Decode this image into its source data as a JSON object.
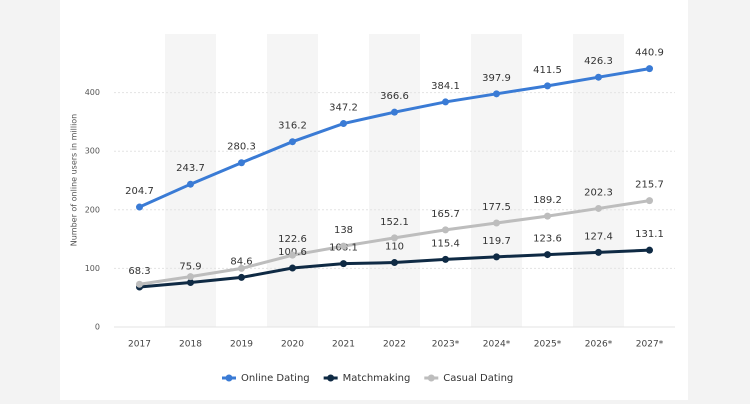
{
  "chart_data": {
    "type": "line",
    "y_label": "Number of online users in million",
    "categories": [
      "2017",
      "2018",
      "2019",
      "2020",
      "2021",
      "2022",
      "2023*",
      "2024*",
      "2025*",
      "2026*",
      "2027*"
    ],
    "series": [
      {
        "name": "Online Dating",
        "color": "#3a7bd5",
        "values": [
          204.7,
          243.7,
          280.3,
          316.2,
          347.2,
          366.6,
          384.1,
          397.9,
          411.5,
          426.3,
          440.9
        ]
      },
      {
        "name": "Matchmaking",
        "color": "#0f2a44",
        "values": [
          68.3,
          75.9,
          84.6,
          100.6,
          108.1,
          110,
          115.4,
          119.7,
          123.6,
          127.4,
          131.1
        ]
      },
      {
        "name": "Casual Dating",
        "color": "#bdbdbd",
        "values": [
          73,
          86,
          100,
          122.6,
          138,
          152.1,
          165.7,
          177.5,
          189.2,
          202.3,
          215.7
        ],
        "value_labels": [
          null,
          null,
          null,
          "122.6",
          "138",
          "152.1",
          "165.7",
          "177.5",
          "189.2",
          "202.3",
          "215.7"
        ]
      }
    ],
    "ylim": [
      0,
      500
    ],
    "yticks": [
      0,
      100,
      200,
      300,
      400
    ],
    "grid": true,
    "legend": "bottom"
  }
}
